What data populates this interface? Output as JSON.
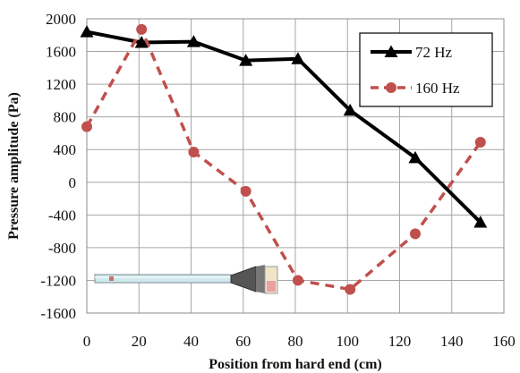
{
  "chart_data": {
    "type": "line",
    "xlabel": "Position from hard end (cm)",
    "ylabel": "Pressure amplitude (Pa)",
    "xlim": [
      0,
      160
    ],
    "ylim": [
      -1600,
      2000
    ],
    "xticks": [
      0,
      20,
      40,
      60,
      80,
      100,
      120,
      140,
      160
    ],
    "yticks": [
      2000,
      1600,
      1200,
      800,
      400,
      0,
      -400,
      -800,
      -1200,
      -1600
    ],
    "grid": true,
    "legend_position": "top-right",
    "series": [
      {
        "name": "72 Hz",
        "color": "#000000",
        "marker": "triangle",
        "line_style": "solid",
        "x": [
          0,
          21,
          41,
          61,
          81,
          101,
          126,
          151
        ],
        "y": [
          1840,
          1710,
          1720,
          1490,
          1510,
          880,
          300,
          -490
        ]
      },
      {
        "name": "160 Hz",
        "color": "#c0504d",
        "marker": "circle",
        "line_style": "dashed",
        "x": [
          0,
          21,
          41,
          61,
          81,
          101,
          126,
          151
        ],
        "y": [
          680,
          1870,
          370,
          -110,
          -1200,
          -1310,
          -630,
          490
        ]
      }
    ]
  }
}
